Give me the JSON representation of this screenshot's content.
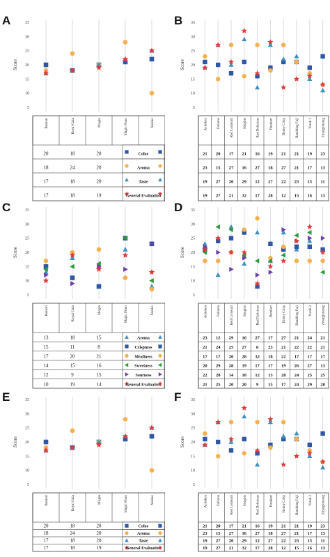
{
  "figure": {
    "panels": [
      {
        "letter": "A"
      },
      {
        "letter": "B"
      },
      {
        "letter": "C"
      },
      {
        "letter": "D"
      },
      {
        "letter": "E"
      },
      {
        "letter": "F"
      }
    ]
  },
  "colors": {
    "color": "#2e58a6",
    "aroma": "#f5b04f",
    "taste": "#3f8fbf",
    "general": "#e0393a",
    "crispness": "#2e58a6",
    "mealiness": "#f5b04f",
    "sweetness": "#2a9a3a",
    "sourness": "#6a3da8",
    "line": "#d9dbe3"
  },
  "chart_data": [
    {
      "panel": "A",
      "type": "scatter",
      "ylabel": "Score",
      "ylim": [
        5,
        35
      ],
      "yticks": [
        "5",
        "10",
        "15",
        "20",
        "25",
        "30",
        "35"
      ],
      "categories": [
        "Bakrari",
        "Royal Gala",
        "Mogin",
        "Magic Pluto",
        "Stekko"
      ],
      "series": [
        {
          "name": "Color",
          "marker": "square",
          "color_key": "color",
          "values": [
            20,
            18,
            20,
            21,
            22
          ]
        },
        {
          "name": "Aroma",
          "marker": "circle",
          "color_key": "aroma",
          "values": [
            18,
            24,
            20,
            28,
            10
          ]
        },
        {
          "name": "Taste",
          "marker": "triangle",
          "color_key": "taste",
          "values": [
            17,
            18,
            20,
            22,
            25
          ]
        },
        {
          "name": "General Evaluation",
          "marker": "star",
          "color_key": "general",
          "values": [
            17,
            18,
            19,
            22,
            25
          ]
        }
      ]
    },
    {
      "panel": "B",
      "type": "scatter",
      "ylabel": "Score",
      "ylim": [
        5,
        35
      ],
      "yticks": [
        "5",
        "10",
        "15",
        "20",
        "25",
        "30",
        "35"
      ],
      "categories": [
        "Acitekon",
        "Fabiana",
        "Red Cornerall",
        "Hergbis",
        "Red Delicious",
        "Harakari",
        "Honey Crisp",
        "Bandhing Fuji",
        "Yurak 2",
        "Zmargjonarag"
      ],
      "series": [
        {
          "name": "Color",
          "marker": "square",
          "color_key": "color",
          "values": [
            21,
            20,
            17,
            21,
            16,
            19,
            21,
            21,
            19,
            23
          ]
        },
        {
          "name": "Aroma",
          "marker": "circle",
          "color_key": "aroma",
          "values": [
            23,
            15,
            27,
            16,
            27,
            18,
            27,
            21,
            17,
            13
          ]
        },
        {
          "name": "Taste",
          "marker": "triangle",
          "color_key": "taste",
          "values": [
            19,
            27,
            20,
            29,
            12,
            27,
            22,
            23,
            15,
            11
          ]
        },
        {
          "name": "General Evaluation",
          "marker": "star",
          "color_key": "general",
          "values": [
            19,
            27,
            21,
            32,
            17,
            28,
            12,
            15,
            16,
            13
          ]
        }
      ]
    },
    {
      "panel": "C",
      "type": "scatter",
      "ylabel": "Score",
      "ylim": [
        5,
        35
      ],
      "yticks": [
        "5",
        "10",
        "15",
        "20",
        "25",
        "30",
        "35"
      ],
      "categories": [
        "Bakrari",
        "Royal Gala",
        "Mogin",
        "Magic Pluto",
        "Stekko"
      ],
      "series": [
        {
          "name": "Aroma",
          "marker": "triangle",
          "color_key": "taste",
          "values": [
            13,
            18,
            15,
            21,
            8
          ]
        },
        {
          "name": "Crispness",
          "marker": "square",
          "color_key": "crispness",
          "values": [
            15,
            11,
            8,
            25,
            23
          ]
        },
        {
          "name": "Mealiness",
          "marker": "circle",
          "color_key": "mealiness",
          "values": [
            17,
            20,
            21,
            11,
            7
          ]
        },
        {
          "name": "Sweetness",
          "marker": "triangle-left",
          "color_key": "sweetness",
          "values": [
            14,
            15,
            16,
            25,
            10
          ]
        },
        {
          "name": "Sourness",
          "marker": "triangle-right",
          "color_key": "sourness",
          "values": [
            12,
            9,
            15,
            14,
            23
          ]
        },
        {
          "name": "General Evaluation",
          "marker": "star",
          "color_key": "general",
          "values": [
            10,
            19,
            14,
            19,
            13
          ]
        }
      ]
    },
    {
      "panel": "D",
      "type": "scatter",
      "ylabel": "Score",
      "ylim": [
        5,
        35
      ],
      "yticks": [
        "5",
        "10",
        "15",
        "20",
        "25",
        "30",
        "35"
      ],
      "categories": [
        "Acitekon",
        "Fabiana",
        "Red Cornerall",
        "Hergbis",
        "Red Delicious",
        "Harakari",
        "Honey Crisp",
        "Bandhing Fuji",
        "Yurak 2",
        "Zmargjonarag"
      ],
      "series": [
        {
          "name": "Aroma",
          "marker": "triangle",
          "color_key": "taste",
          "values": [
            23,
            12,
            29,
            16,
            27,
            17,
            27,
            21,
            24,
            21
          ]
        },
        {
          "name": "Crispness",
          "marker": "square",
          "color_key": "crispness",
          "values": [
            21,
            24,
            25,
            27,
            8,
            23,
            21,
            22,
            22,
            21
          ]
        },
        {
          "name": "Mealiness",
          "marker": "circle",
          "color_key": "mealiness",
          "values": [
            17,
            17,
            20,
            28,
            32,
            18,
            22,
            17,
            17,
            17
          ]
        },
        {
          "name": "Sweetness",
          "marker": "triangle-left",
          "color_key": "sweetness",
          "values": [
            20,
            29,
            28,
            19,
            17,
            17,
            19,
            26,
            27,
            13
          ]
        },
        {
          "name": "Sourness",
          "marker": "triangle-right",
          "color_key": "sourness",
          "values": [
            22,
            20,
            14,
            18,
            12,
            13,
            28,
            24,
            25,
            25
          ]
        },
        {
          "name": "General Evaluation",
          "marker": "star",
          "color_key": "general",
          "values": [
            21,
            25,
            20,
            20,
            9,
            15,
            17,
            24,
            29,
            20
          ]
        }
      ]
    },
    {
      "panel": "E",
      "type": "scatter",
      "ylabel": "Score",
      "ylim": [
        5,
        35
      ],
      "yticks": [
        "5",
        "10",
        "15",
        "20",
        "25",
        "30",
        "35"
      ],
      "categories": [
        "Bakrari",
        "Royal Gala",
        "Mogin",
        "Magic Pluto",
        "Stekko"
      ],
      "series": [
        {
          "name": "Color",
          "marker": "square",
          "color_key": "color",
          "values": [
            20,
            18,
            20,
            21,
            22
          ]
        },
        {
          "name": "Aroma",
          "marker": "circle",
          "color_key": "aroma",
          "values": [
            18,
            24,
            20,
            28,
            10
          ]
        },
        {
          "name": "Taste",
          "marker": "triangle",
          "color_key": "taste",
          "values": [
            17,
            18,
            20,
            22,
            25
          ]
        },
        {
          "name": "General Evaluation",
          "marker": "star",
          "color_key": "general",
          "values": [
            17,
            18,
            19,
            22,
            25
          ]
        }
      ]
    },
    {
      "panel": "F",
      "type": "scatter",
      "ylabel": "Score",
      "ylim": [
        5,
        35
      ],
      "yticks": [
        "5",
        "10",
        "15",
        "20",
        "25",
        "30",
        "35"
      ],
      "categories": [
        "Acitekon",
        "Fabiana",
        "Red Cornerall",
        "Hergbis",
        "Red Delicious",
        "Harakari",
        "Honey Crisp",
        "Bandhing Fuji",
        "Yurak 2",
        "Zmargjonarag"
      ],
      "series": [
        {
          "name": "Color",
          "marker": "square",
          "color_key": "color",
          "values": [
            21,
            20,
            17,
            21,
            16,
            19,
            21,
            21,
            19,
            23
          ]
        },
        {
          "name": "Aroma",
          "marker": "circle",
          "color_key": "aroma",
          "values": [
            23,
            15,
            27,
            16,
            27,
            18,
            27,
            21,
            17,
            13
          ]
        },
        {
          "name": "Taste",
          "marker": "triangle",
          "color_key": "taste",
          "values": [
            19,
            27,
            20,
            29,
            12,
            27,
            22,
            23,
            15,
            11
          ]
        },
        {
          "name": "General Evaluation",
          "marker": "star",
          "color_key": "general",
          "values": [
            19,
            27,
            21,
            32,
            17,
            28,
            12,
            15,
            16,
            13
          ]
        }
      ]
    }
  ]
}
